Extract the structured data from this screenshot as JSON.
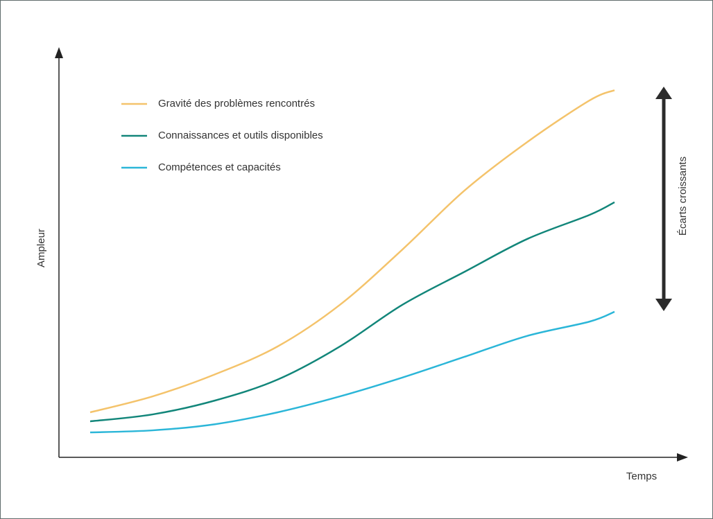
{
  "chart_data": {
    "type": "line",
    "x_label": "Temps",
    "y_label": "Ampleur",
    "annotation": "Écarts croissants",
    "legend": "top-left",
    "xlim": [
      0,
      100
    ],
    "ylim": [
      0,
      100
    ],
    "x": [
      5,
      15,
      25,
      35,
      45,
      55,
      65,
      75,
      85,
      89
    ],
    "series": [
      {
        "name": "Gravité des problèmes rencontrés",
        "color": "#f4c36b",
        "values": [
          11,
          14.9,
          20.3,
          27.1,
          37.3,
          50.8,
          65.3,
          77.1,
          87.3,
          89.8
        ]
      },
      {
        "name": "Connaissances et outils disponibles",
        "color": "#12867a",
        "values": [
          8.8,
          10.5,
          13.9,
          19,
          27.1,
          37.3,
          45.4,
          53.4,
          59.3,
          62.4
        ]
      },
      {
        "name": "Compétences et capacités",
        "color": "#2bb6d8",
        "values": [
          6.1,
          6.6,
          8.1,
          11,
          14.9,
          19.5,
          24.6,
          29.7,
          33.2,
          35.6
        ]
      }
    ]
  }
}
